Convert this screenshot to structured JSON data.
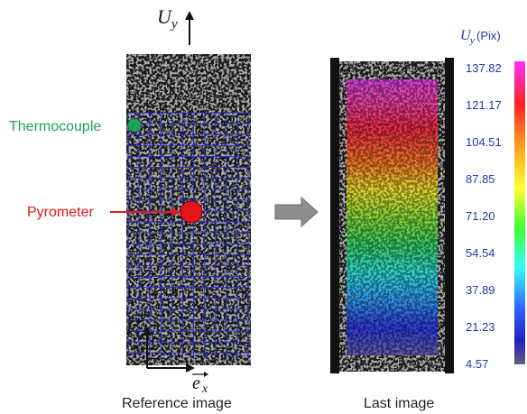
{
  "axis_label_top": "U",
  "axis_label_top_sub": "y",
  "label_thermocouple": "Thermocouple",
  "label_pyrometer": "Pyrometer",
  "axis_ex": "e",
  "axis_ex_sub": "x",
  "axis_ey": "e",
  "axis_ey_sub": "y",
  "caption_left": "Reference image",
  "caption_right": "Last image",
  "colorbar": {
    "title_var": "U",
    "title_sub": "y",
    "title_unit": "(Pix)",
    "ticks": [
      "137.82",
      "121.17",
      "104.51",
      "87.85",
      "71.20",
      "54.54",
      "37.89",
      "21.23",
      "4.57"
    ]
  },
  "colors": {
    "thermocouple": "#1aa35a",
    "pyrometer": "#e8141b",
    "grid": "#2530c8",
    "tick_text": "#1f3bb0"
  }
}
